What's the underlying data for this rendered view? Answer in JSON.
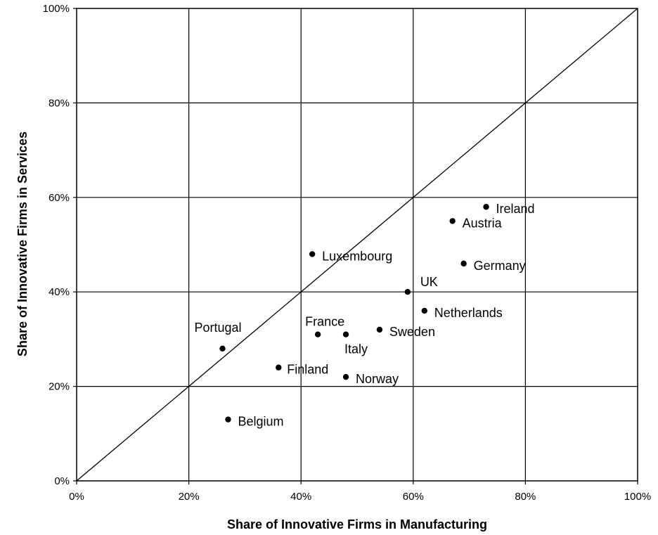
{
  "chart_data": {
    "type": "scatter",
    "xlabel": "Share of Innovative Firms in Manufacturing",
    "ylabel": "Share of Innovative Firms in Services",
    "xlim": [
      0,
      100
    ],
    "ylim": [
      0,
      100
    ],
    "x_ticks": [
      "0%",
      "20%",
      "40%",
      "60%",
      "80%",
      "100%"
    ],
    "y_ticks": [
      "0%",
      "20%",
      "40%",
      "60%",
      "80%",
      "100%"
    ],
    "grid": true,
    "reference_line": "diagonal y = x",
    "points": [
      {
        "label": "Ireland",
        "x": 73,
        "y": 58
      },
      {
        "label": "Austria",
        "x": 67,
        "y": 55
      },
      {
        "label": "Luxembourg",
        "x": 42,
        "y": 48
      },
      {
        "label": "Germany",
        "x": 69,
        "y": 46
      },
      {
        "label": "UK",
        "x": 59,
        "y": 40
      },
      {
        "label": "Netherlands",
        "x": 62,
        "y": 36
      },
      {
        "label": "France",
        "x": 43,
        "y": 31
      },
      {
        "label": "Italy",
        "x": 48,
        "y": 31
      },
      {
        "label": "Sweden",
        "x": 54,
        "y": 32
      },
      {
        "label": "Portugal",
        "x": 26,
        "y": 28
      },
      {
        "label": "Finland",
        "x": 36,
        "y": 24
      },
      {
        "label": "Norway",
        "x": 48,
        "y": 22
      },
      {
        "label": "Belgium",
        "x": 27,
        "y": 13
      }
    ]
  }
}
